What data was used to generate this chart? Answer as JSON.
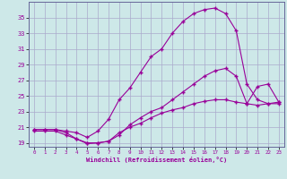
{
  "xlabel": "Windchill (Refroidissement éolien,°C)",
  "bg_color": "#cde8e8",
  "grid_color": "#aaaacc",
  "line_color": "#990099",
  "marker": "+",
  "xlim": [
    -0.5,
    23.5
  ],
  "ylim": [
    18.5,
    37.0
  ],
  "xticks": [
    0,
    1,
    2,
    3,
    4,
    5,
    6,
    7,
    8,
    9,
    10,
    11,
    12,
    13,
    14,
    15,
    16,
    17,
    18,
    19,
    20,
    21,
    22,
    23
  ],
  "yticks": [
    19,
    21,
    23,
    25,
    27,
    29,
    31,
    33,
    35
  ],
  "line1_x": [
    0,
    1,
    2,
    3,
    4,
    5,
    6,
    7,
    8,
    9,
    10,
    11,
    12,
    13,
    14,
    15,
    16,
    17,
    18,
    19,
    20,
    21,
    22,
    23
  ],
  "line1_y": [
    20.7,
    20.7,
    20.7,
    20.5,
    20.3,
    19.7,
    20.5,
    22.0,
    24.5,
    26.0,
    28.0,
    30.0,
    31.0,
    33.0,
    34.5,
    35.5,
    36.0,
    36.2,
    35.5,
    33.3,
    26.5,
    24.5,
    24.0,
    24.0
  ],
  "line2_x": [
    0,
    1,
    2,
    3,
    4,
    5,
    6,
    7,
    8,
    9,
    10,
    11,
    12,
    13,
    14,
    15,
    16,
    17,
    18,
    19,
    20,
    21,
    22,
    23
  ],
  "line2_y": [
    20.7,
    20.7,
    20.7,
    20.3,
    19.5,
    18.9,
    19.0,
    19.2,
    20.0,
    21.3,
    22.2,
    23.0,
    23.5,
    24.5,
    25.5,
    26.5,
    27.5,
    28.2,
    28.5,
    27.5,
    24.0,
    26.2,
    26.5,
    24.2
  ],
  "line3_x": [
    0,
    1,
    2,
    3,
    4,
    5,
    6,
    7,
    8,
    9,
    10,
    11,
    12,
    13,
    14,
    15,
    16,
    17,
    18,
    19,
    20,
    21,
    22,
    23
  ],
  "line3_y": [
    20.5,
    20.5,
    20.5,
    20.0,
    19.5,
    19.0,
    19.0,
    19.2,
    20.3,
    21.0,
    21.5,
    22.2,
    22.8,
    23.2,
    23.5,
    24.0,
    24.3,
    24.5,
    24.5,
    24.2,
    24.0,
    23.8,
    24.0,
    24.2
  ]
}
